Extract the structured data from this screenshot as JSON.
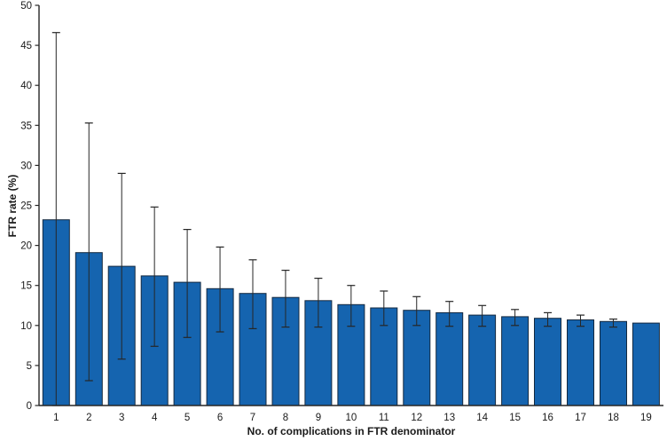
{
  "chart_data": {
    "type": "bar",
    "title": "",
    "xlabel": "No. of complications in FTR denominator",
    "ylabel": "FTR rate (%)",
    "categories": [
      "1",
      "2",
      "3",
      "4",
      "5",
      "6",
      "7",
      "8",
      "9",
      "10",
      "11",
      "12",
      "13",
      "14",
      "15",
      "16",
      "17",
      "18",
      "19"
    ],
    "values": [
      23.2,
      19.1,
      17.4,
      16.2,
      15.4,
      14.6,
      14.0,
      13.5,
      13.1,
      12.6,
      12.2,
      11.9,
      11.6,
      11.3,
      11.1,
      10.9,
      10.7,
      10.5,
      10.3
    ],
    "error_upper": [
      46.6,
      35.3,
      29.0,
      24.8,
      22.0,
      19.8,
      18.2,
      16.9,
      15.9,
      15.0,
      14.3,
      13.6,
      13.0,
      12.5,
      12.0,
      11.6,
      11.3,
      10.8,
      null
    ],
    "error_lower": [
      0.0,
      3.1,
      5.8,
      7.4,
      8.5,
      9.2,
      9.6,
      9.8,
      9.8,
      9.9,
      10.0,
      10.0,
      9.9,
      9.9,
      10.0,
      9.9,
      9.9,
      9.8,
      null
    ],
    "ylim": [
      0,
      50
    ],
    "ytick_step": 5,
    "ytick_labels": [
      "0",
      "5",
      "10",
      "15",
      "20",
      "25",
      "30",
      "35",
      "40",
      "45",
      "50"
    ],
    "grid": false,
    "legend": null,
    "colors": {
      "bar_fill": "#1564af",
      "bar_edge": "#14293f",
      "error_bar": "#262626",
      "axis": "#262626",
      "text": "#1a1a1a"
    }
  }
}
